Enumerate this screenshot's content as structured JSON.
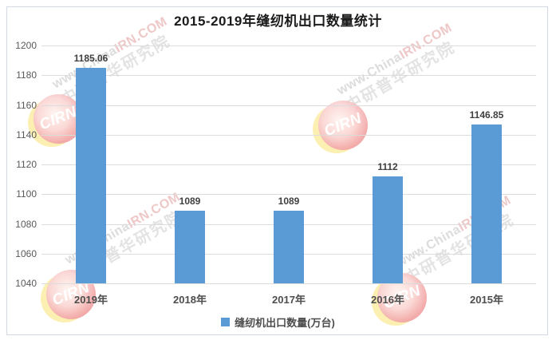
{
  "title": "2015-2019年缝纫机出口数量统计",
  "chart_data": {
    "type": "bar",
    "title": "2015-2019年缝纫机出口数量统计",
    "categories": [
      "2019年",
      "2018年",
      "2017年",
      "2016年",
      "2015年"
    ],
    "values": [
      1185.06,
      1089,
      1089,
      1112,
      1146.85
    ],
    "series_name": "缝纫机出口数量(万台)",
    "xlabel": "",
    "ylabel": "",
    "ylim": [
      1040,
      1200
    ],
    "ytick_step": 20,
    "yticks": [
      1040,
      1060,
      1080,
      1100,
      1120,
      1140,
      1160,
      1180,
      1200
    ],
    "grid": true,
    "legend_position": "bottom",
    "bar_color": "#5B9BD5"
  },
  "legend": {
    "label": "缝纫机出口数量(万台)",
    "swatch_color": "#5B9BD5"
  },
  "watermark": {
    "line1_gray": "www.China",
    "line1_red": "IRN.COM",
    "line2": "中研普华研究院",
    "logo_text": "CIRN"
  },
  "colors": {
    "bar": "#5B9BD5",
    "gridline": "#dcdcdc",
    "axis_text": "#595959",
    "data_label": "#3f3f3f",
    "frame_border": "#d3d9e2"
  }
}
